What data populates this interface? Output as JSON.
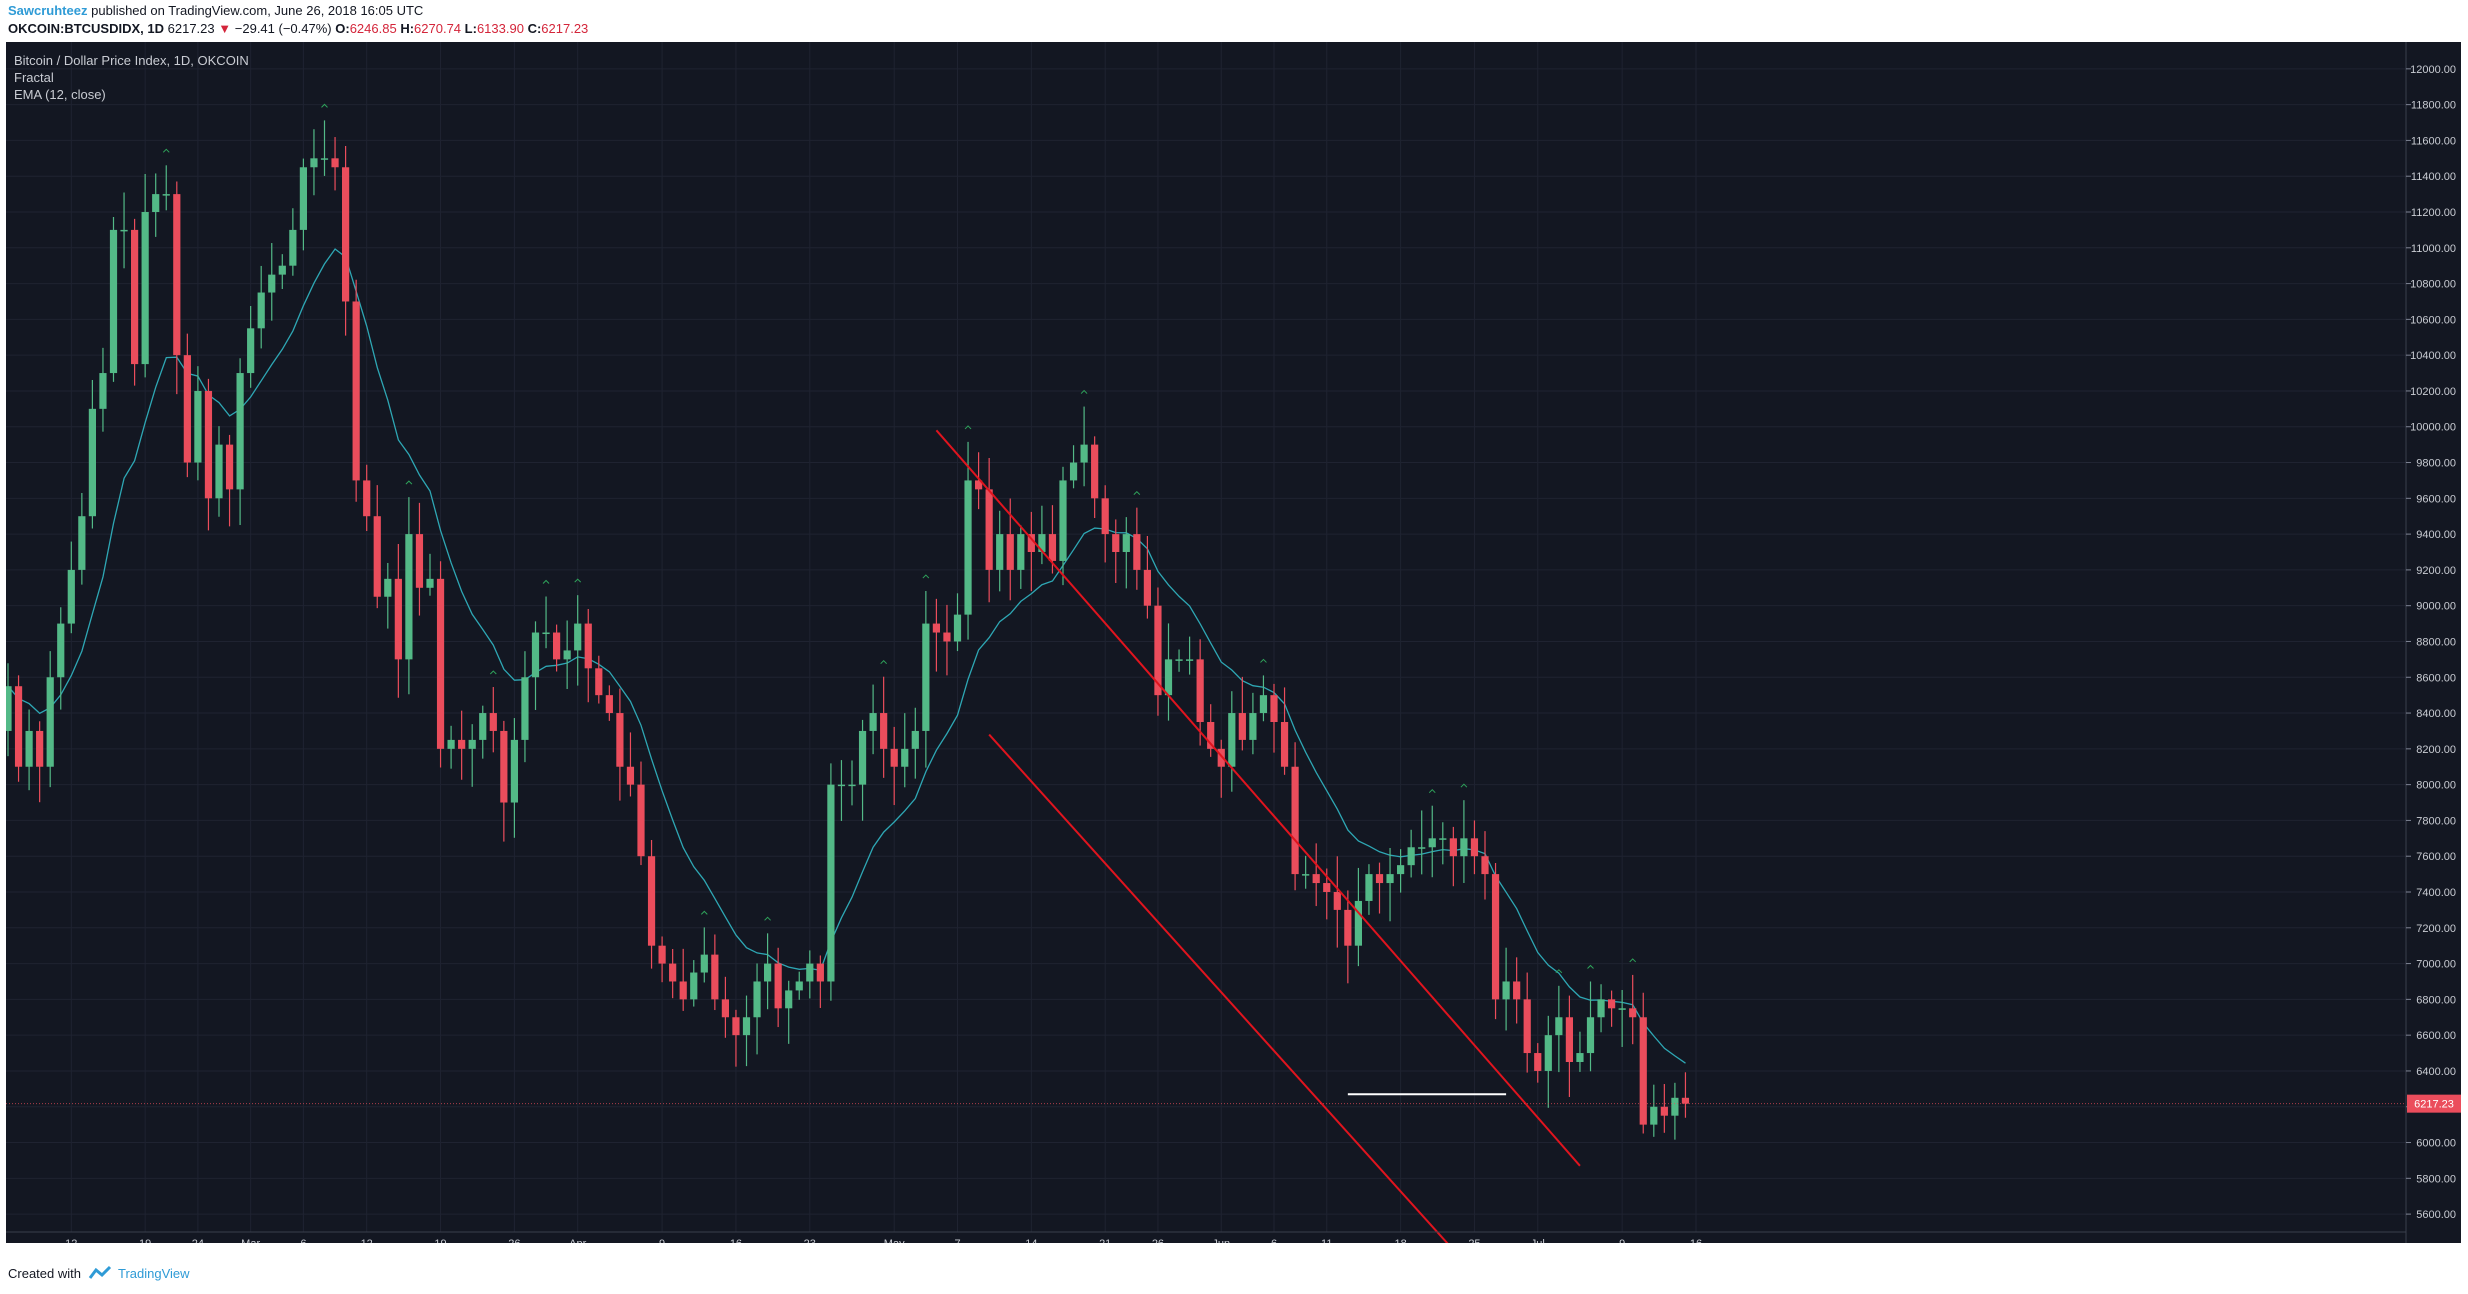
{
  "header": {
    "author": "Sawcruhteez",
    "published": "published on TradingView.com, June 26, 2018 16:05 UTC",
    "symbol": "OKCOIN:BTCUSDIDX, 1D",
    "last": "6217.23",
    "change_arrow": "▼",
    "change": "−29.41 (−0.47%)",
    "o_label": "O:",
    "o_value": "6246.85",
    "h_label": "H:",
    "h_value": "6270.74",
    "l_label": "L:",
    "l_value": "6133.90",
    "c_label": "C:",
    "c_value": "6217.23"
  },
  "legend": {
    "title": "Bitcoin / Dollar Price Index, 1D, OKCOIN",
    "indicator1": "Fractal",
    "indicator2": "EMA (12, close)"
  },
  "footer": {
    "created_with": "Created with",
    "brand": "TradingView"
  },
  "colors": {
    "background": "#131722",
    "up": "#53b987",
    "down": "#eb4d5c",
    "ema": "#2ea7b4",
    "channel": "#e0141e",
    "support": "#ffffff",
    "price_line": "#eb4d5c"
  },
  "chart_data": {
    "type": "candlestick",
    "title": "Bitcoin / Dollar Price Index, 1D, OKCOIN",
    "ylim": [
      5500,
      12150
    ],
    "y_ticks": [
      "12000.00",
      "11800.00",
      "11600.00",
      "11400.00",
      "11200.00",
      "11000.00",
      "10800.00",
      "10600.00",
      "10400.00",
      "10200.00",
      "10000.00",
      "9800.00",
      "9600.00",
      "9400.00",
      "9200.00",
      "9000.00",
      "8800.00",
      "8600.00",
      "8400.00",
      "8200.00",
      "8000.00",
      "7800.00",
      "7600.00",
      "7400.00",
      "7200.00",
      "7000.00",
      "6800.00",
      "6600.00",
      "6400.00",
      "6200.00",
      "6000.00",
      "5800.00",
      "5600.00"
    ],
    "x_ticks": [
      {
        "label": "12",
        "date": "2018-02-12"
      },
      {
        "label": "19",
        "date": "2018-02-19"
      },
      {
        "label": "24",
        "date": "2018-02-24"
      },
      {
        "label": "Mar",
        "date": "2018-03-01"
      },
      {
        "label": "6",
        "date": "2018-03-06"
      },
      {
        "label": "12",
        "date": "2018-03-12"
      },
      {
        "label": "19",
        "date": "2018-03-19"
      },
      {
        "label": "26",
        "date": "2018-03-26"
      },
      {
        "label": "Apr",
        "date": "2018-04-01"
      },
      {
        "label": "9",
        "date": "2018-04-09"
      },
      {
        "label": "16",
        "date": "2018-04-16"
      },
      {
        "label": "23",
        "date": "2018-04-23"
      },
      {
        "label": "May",
        "date": "2018-05-01"
      },
      {
        "label": "7",
        "date": "2018-05-07"
      },
      {
        "label": "14",
        "date": "2018-05-14"
      },
      {
        "label": "21",
        "date": "2018-05-21"
      },
      {
        "label": "26",
        "date": "2018-05-26"
      },
      {
        "label": "Jun",
        "date": "2018-06-01"
      },
      {
        "label": "6",
        "date": "2018-06-06"
      },
      {
        "label": "11",
        "date": "2018-06-11"
      },
      {
        "label": "18",
        "date": "2018-06-18"
      },
      {
        "label": "25",
        "date": "2018-06-25"
      },
      {
        "label": "Jul",
        "date": "2018-07-01"
      },
      {
        "label": "9",
        "date": "2018-07-09"
      },
      {
        "label": "16",
        "date": "2018-07-16"
      }
    ],
    "start_date": "2018-02-06",
    "closes": [
      8550,
      8100,
      8300,
      8100,
      8600,
      8900,
      9200,
      9500,
      10100,
      10300,
      11100,
      11100,
      10350,
      11200,
      11300,
      11300,
      10400,
      9800,
      10200,
      9600,
      9900,
      9650,
      10300,
      10550,
      10750,
      10850,
      10900,
      11100,
      11450,
      11500,
      11500,
      11450,
      10700,
      9700,
      9500,
      9050,
      9150,
      8700,
      9400,
      9100,
      9150,
      8200,
      8250,
      8200,
      8250,
      8400,
      8300,
      7900,
      8250,
      8600,
      8850,
      8850,
      8700,
      8750,
      8900,
      8650,
      8500,
      8400,
      8100,
      8000,
      7600,
      7100,
      7000,
      6900,
      6800,
      6950,
      7050,
      6800,
      6700,
      6600,
      6700,
      6900,
      7000,
      6750,
      6850,
      6900,
      7000,
      6900,
      8000,
      8000,
      8000,
      8300,
      8400,
      8200,
      8100,
      8200,
      8300,
      8900,
      8850,
      8800,
      8950,
      9700,
      9650,
      9200,
      9400,
      9200,
      9400,
      9300,
      9400,
      9250,
      9700,
      9800,
      9900,
      9600,
      9400,
      9300,
      9400,
      9200,
      9000,
      8500,
      8700,
      8700,
      8700,
      8350,
      8200,
      8100,
      8400,
      8250,
      8400,
      8500,
      8350,
      8100,
      7500,
      7500,
      7450,
      7400,
      7300,
      7100,
      7350,
      7500,
      7450,
      7500,
      7550,
      7650,
      7650,
      7700,
      7700,
      7600,
      7700,
      7600,
      7500,
      6800,
      6900,
      6800,
      6500,
      6400,
      6600,
      6700,
      6450,
      6500,
      6700,
      6800,
      6750,
      6750,
      6700,
      6100,
      6200,
      6150,
      6250,
      6217.23
    ],
    "ema": {
      "name": "EMA (12, close)"
    },
    "channel_upper": [
      {
        "date": "2018-05-05",
        "value": 9980
      },
      {
        "date": "2018-07-05",
        "value": 5870
      }
    ],
    "channel_lower": [
      {
        "date": "2018-05-10",
        "value": 8280
      },
      {
        "date": "2018-06-23",
        "value": 5400
      }
    ],
    "support_line": {
      "from": "2018-06-13",
      "to": "2018-06-28",
      "value": 6270
    },
    "last_price": 6217.23
  }
}
